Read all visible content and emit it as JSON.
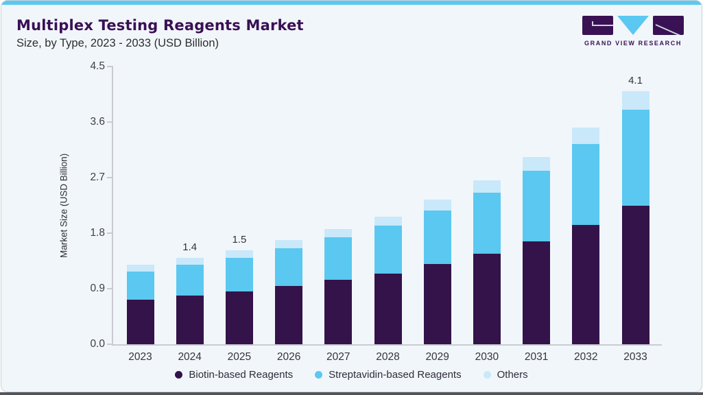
{
  "header": {
    "title": "Multiplex Testing Reagents Market",
    "subtitle": "Size, by Type, 2023 - 2033 (USD Billion)"
  },
  "logo": {
    "text": "GRAND VIEW RESEARCH",
    "mark_colors": {
      "rect": "#3a1154",
      "triangle": "#5ac8f0"
    }
  },
  "chart_data": {
    "type": "bar",
    "stacked": true,
    "title": "Multiplex Testing Reagents Market",
    "subtitle": "Size, by Type, 2023 - 2033 (USD Billion)",
    "ylabel": "Market Size (USD Billion)",
    "ylim": [
      0,
      4.5
    ],
    "yticks": [
      "4.5",
      "3.6",
      "2.7",
      "1.8",
      "0.9",
      "0.0"
    ],
    "grid": false,
    "legend_position": "bottom",
    "categories": [
      "2023",
      "2024",
      "2025",
      "2026",
      "2027",
      "2028",
      "2029",
      "2030",
      "2031",
      "2032",
      "2033"
    ],
    "series": [
      {
        "name": "Biotin-based Reagents",
        "color": "#331349",
        "values": [
          0.72,
          0.79,
          0.86,
          0.95,
          1.05,
          1.15,
          1.3,
          1.47,
          1.67,
          1.93,
          2.25
        ]
      },
      {
        "name": "Streptavidin-based Reagents",
        "color": "#5ac8f0",
        "values": [
          0.46,
          0.5,
          0.54,
          0.61,
          0.68,
          0.77,
          0.87,
          0.99,
          1.14,
          1.32,
          1.55
        ]
      },
      {
        "name": "Others",
        "color": "#c9e8fa",
        "values": [
          0.11,
          0.11,
          0.12,
          0.13,
          0.14,
          0.15,
          0.17,
          0.2,
          0.22,
          0.26,
          0.3
        ]
      }
    ],
    "bar_labels": [
      "",
      "1.4",
      "1.5",
      "",
      "",
      "",
      "",
      "",
      "",
      "",
      "4.1"
    ]
  },
  "colors": {
    "accent_bar": "#5ac8f0",
    "card_bg": "#f1f6fa",
    "card_border": "#cbd3da",
    "title_text": "#3a0f55",
    "axis_line": "#c9cbd1",
    "bottom_strip": "#54555b"
  }
}
